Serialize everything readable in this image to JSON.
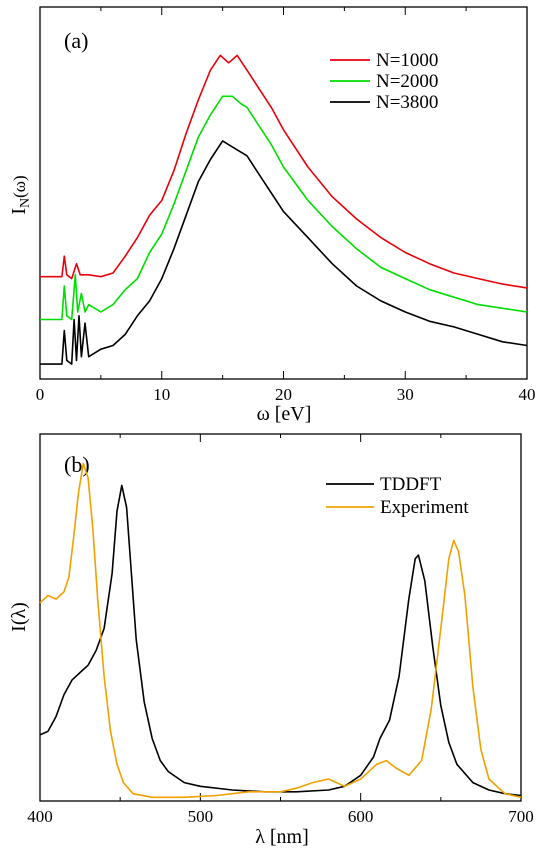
{
  "chart_data": [
    {
      "type": "line",
      "panel_label": "(a)",
      "xlabel": "ω  [eV]",
      "ylabel": "I",
      "ylabel_sub": "N",
      "ylabel_tail": "(ω)",
      "xlim": [
        0,
        40
      ],
      "xticks": [
        0,
        10,
        20,
        30,
        40
      ],
      "ylim": [
        0,
        1
      ],
      "y_tick_labels": false,
      "legend_position": "top-right",
      "series": [
        {
          "name": "N=1000",
          "color": "#e8000b",
          "points": [
            [
              0,
              0.275
            ],
            [
              1.8,
              0.275
            ],
            [
              2.0,
              0.33
            ],
            [
              2.2,
              0.28
            ],
            [
              2.6,
              0.27
            ],
            [
              3.0,
              0.31
            ],
            [
              3.3,
              0.28
            ],
            [
              4,
              0.28
            ],
            [
              5,
              0.275
            ],
            [
              6,
              0.285
            ],
            [
              7,
              0.33
            ],
            [
              8,
              0.38
            ],
            [
              9,
              0.44
            ],
            [
              10,
              0.48
            ],
            [
              11,
              0.56
            ],
            [
              12,
              0.66
            ],
            [
              13,
              0.75
            ],
            [
              14,
              0.83
            ],
            [
              14.8,
              0.87
            ],
            [
              15.5,
              0.85
            ],
            [
              16.2,
              0.87
            ],
            [
              17,
              0.83
            ],
            [
              18,
              0.78
            ],
            [
              19,
              0.73
            ],
            [
              20,
              0.67
            ],
            [
              22,
              0.57
            ],
            [
              24,
              0.49
            ],
            [
              26,
              0.43
            ],
            [
              28,
              0.38
            ],
            [
              30,
              0.34
            ],
            [
              32,
              0.31
            ],
            [
              34,
              0.285
            ],
            [
              36,
              0.27
            ],
            [
              38,
              0.255
            ],
            [
              40,
              0.245
            ]
          ]
        },
        {
          "name": "N=2000",
          "color": "#00dd00",
          "points": [
            [
              0,
              0.16
            ],
            [
              1.8,
              0.16
            ],
            [
              2.0,
              0.25
            ],
            [
              2.2,
              0.17
            ],
            [
              2.6,
              0.16
            ],
            [
              2.9,
              0.28
            ],
            [
              3.1,
              0.18
            ],
            [
              3.4,
              0.23
            ],
            [
              3.7,
              0.18
            ],
            [
              4,
              0.2
            ],
            [
              5,
              0.18
            ],
            [
              6,
              0.2
            ],
            [
              7,
              0.24
            ],
            [
              8,
              0.27
            ],
            [
              9,
              0.34
            ],
            [
              10,
              0.39
            ],
            [
              11,
              0.47
            ],
            [
              12,
              0.56
            ],
            [
              13,
              0.65
            ],
            [
              14,
              0.71
            ],
            [
              15,
              0.76
            ],
            [
              15.8,
              0.76
            ],
            [
              16.5,
              0.74
            ],
            [
              17,
              0.73
            ],
            [
              18,
              0.68
            ],
            [
              19,
              0.63
            ],
            [
              20,
              0.57
            ],
            [
              22,
              0.48
            ],
            [
              24,
              0.41
            ],
            [
              26,
              0.35
            ],
            [
              28,
              0.3
            ],
            [
              30,
              0.27
            ],
            [
              32,
              0.24
            ],
            [
              34,
              0.22
            ],
            [
              36,
              0.2
            ],
            [
              38,
              0.19
            ],
            [
              40,
              0.18
            ]
          ]
        },
        {
          "name": "N=3800",
          "color": "#000000",
          "points": [
            [
              0,
              0.04
            ],
            [
              1.8,
              0.04
            ],
            [
              2.0,
              0.13
            ],
            [
              2.2,
              0.05
            ],
            [
              2.6,
              0.04
            ],
            [
              2.8,
              0.16
            ],
            [
              3.0,
              0.05
            ],
            [
              3.2,
              0.17
            ],
            [
              3.4,
              0.06
            ],
            [
              3.7,
              0.15
            ],
            [
              4,
              0.06
            ],
            [
              5,
              0.08
            ],
            [
              6,
              0.09
            ],
            [
              7,
              0.12
            ],
            [
              8,
              0.17
            ],
            [
              9,
              0.21
            ],
            [
              10,
              0.27
            ],
            [
              11,
              0.35
            ],
            [
              12,
              0.44
            ],
            [
              13,
              0.53
            ],
            [
              14,
              0.59
            ],
            [
              15,
              0.64
            ],
            [
              16,
              0.62
            ],
            [
              17,
              0.6
            ],
            [
              18,
              0.55
            ],
            [
              19,
              0.5
            ],
            [
              20,
              0.45
            ],
            [
              22,
              0.38
            ],
            [
              24,
              0.31
            ],
            [
              26,
              0.25
            ],
            [
              28,
              0.21
            ],
            [
              30,
              0.18
            ],
            [
              32,
              0.155
            ],
            [
              34,
              0.14
            ],
            [
              36,
              0.12
            ],
            [
              38,
              0.1
            ],
            [
              40,
              0.09
            ]
          ]
        }
      ]
    },
    {
      "type": "line",
      "panel_label": "(b)",
      "xlabel": "λ  [nm]",
      "ylabel": "I(λ)",
      "xlim": [
        400,
        700
      ],
      "xticks": [
        400,
        500,
        600,
        700
      ],
      "ylim": [
        0,
        1
      ],
      "y_tick_labels": false,
      "legend_position": "top-right",
      "series": [
        {
          "name": "TDDFT",
          "color": "#000000",
          "points": [
            [
              400,
              0.18
            ],
            [
              405,
              0.19
            ],
            [
              410,
              0.23
            ],
            [
              415,
              0.29
            ],
            [
              420,
              0.33
            ],
            [
              425,
              0.35
            ],
            [
              430,
              0.37
            ],
            [
              435,
              0.41
            ],
            [
              440,
              0.47
            ],
            [
              445,
              0.62
            ],
            [
              448,
              0.79
            ],
            [
              451,
              0.86
            ],
            [
              454,
              0.8
            ],
            [
              457,
              0.62
            ],
            [
              460,
              0.44
            ],
            [
              465,
              0.27
            ],
            [
              470,
              0.17
            ],
            [
              475,
              0.11
            ],
            [
              480,
              0.08
            ],
            [
              490,
              0.05
            ],
            [
              500,
              0.04
            ],
            [
              520,
              0.03
            ],
            [
              540,
              0.025
            ],
            [
              560,
              0.025
            ],
            [
              580,
              0.03
            ],
            [
              590,
              0.04
            ],
            [
              600,
              0.07
            ],
            [
              608,
              0.12
            ],
            [
              612,
              0.17
            ],
            [
              618,
              0.22
            ],
            [
              624,
              0.34
            ],
            [
              630,
              0.55
            ],
            [
              634,
              0.66
            ],
            [
              636,
              0.67
            ],
            [
              640,
              0.6
            ],
            [
              645,
              0.42
            ],
            [
              650,
              0.26
            ],
            [
              655,
              0.16
            ],
            [
              660,
              0.1
            ],
            [
              670,
              0.05
            ],
            [
              680,
              0.03
            ],
            [
              690,
              0.02
            ],
            [
              700,
              0.015
            ]
          ]
        },
        {
          "name": "Experiment",
          "color": "#f0a000",
          "points": [
            [
              400,
              0.54
            ],
            [
              405,
              0.56
            ],
            [
              410,
              0.55
            ],
            [
              415,
              0.57
            ],
            [
              418,
              0.61
            ],
            [
              421,
              0.72
            ],
            [
              424,
              0.84
            ],
            [
              427,
              0.92
            ],
            [
              430,
              0.88
            ],
            [
              433,
              0.74
            ],
            [
              436,
              0.55
            ],
            [
              440,
              0.34
            ],
            [
              444,
              0.19
            ],
            [
              448,
              0.1
            ],
            [
              452,
              0.05
            ],
            [
              458,
              0.02
            ],
            [
              470,
              0.01
            ],
            [
              490,
              0.01
            ],
            [
              510,
              0.015
            ],
            [
              530,
              0.025
            ],
            [
              550,
              0.025
            ],
            [
              560,
              0.035
            ],
            [
              570,
              0.05
            ],
            [
              580,
              0.06
            ],
            [
              590,
              0.04
            ],
            [
              600,
              0.06
            ],
            [
              610,
              0.1
            ],
            [
              616,
              0.11
            ],
            [
              622,
              0.09
            ],
            [
              630,
              0.07
            ],
            [
              638,
              0.11
            ],
            [
              644,
              0.25
            ],
            [
              650,
              0.47
            ],
            [
              655,
              0.66
            ],
            [
              658,
              0.71
            ],
            [
              661,
              0.68
            ],
            [
              665,
              0.56
            ],
            [
              670,
              0.31
            ],
            [
              675,
              0.14
            ],
            [
              680,
              0.06
            ],
            [
              690,
              0.02
            ],
            [
              700,
              0.01
            ]
          ]
        }
      ]
    }
  ]
}
